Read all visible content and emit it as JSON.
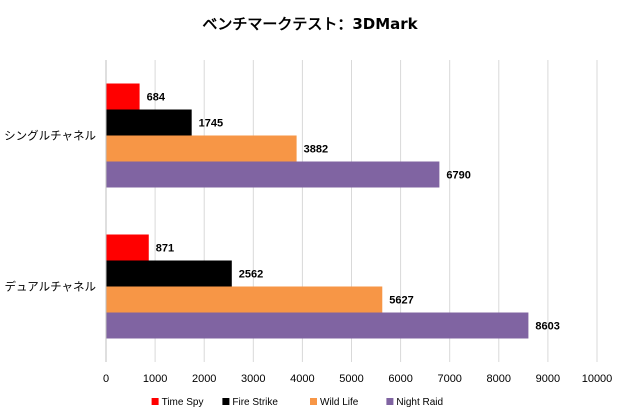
{
  "chart_data": {
    "type": "bar",
    "orientation": "horizontal",
    "title": "ベンチマークテスト：3DMark",
    "categories": [
      "シングルチャネル",
      "デュアルチャネル"
    ],
    "series": [
      {
        "name": "Time Spy",
        "color": "#ff0000",
        "values": [
          684,
          871
        ],
        "labels": [
          "684",
          "871"
        ]
      },
      {
        "name": "Fire Strike",
        "color": "#000000",
        "values": [
          1745,
          2562
        ],
        "labels": [
          "1745",
          "2562"
        ]
      },
      {
        "name": "Wild Life",
        "color": "#f79646",
        "values": [
          3882,
          5627
        ],
        "labels": [
          "3882",
          "5627"
        ]
      },
      {
        "name": "Night Raid",
        "color": "#8064a2",
        "values": [
          6790,
          8603
        ],
        "labels": [
          "6790",
          "8603"
        ]
      }
    ],
    "xlim": [
      0,
      10000
    ],
    "xticks": [
      "0",
      "1000",
      "2000",
      "3000",
      "4000",
      "5000",
      "6000",
      "7000",
      "8000",
      "9000",
      "10000"
    ],
    "grid": true,
    "legend_position": "bottom",
    "xlabel": "",
    "ylabel": ""
  }
}
